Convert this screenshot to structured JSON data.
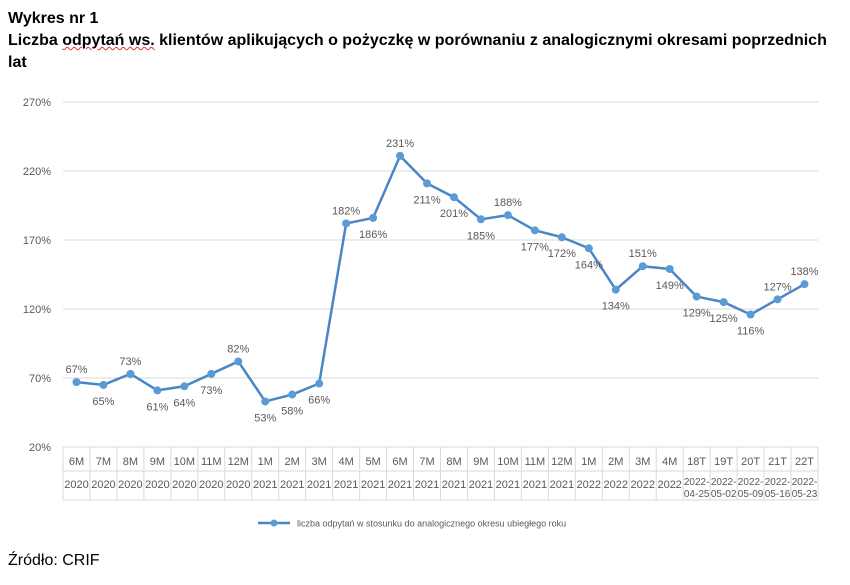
{
  "figure_label": "Wykres nr 1",
  "title_parts": [
    "Liczba ",
    "odpytań ws.",
    " klientów aplikujących o pożyczkę w porównaniu z analogicznymi okresami poprzednich lat"
  ],
  "source": "Źródło: CRIF",
  "colors": {
    "series": "#4a86c5",
    "point": "#5b9bd5",
    "grid": "#d9d9d9",
    "text": "#595959"
  },
  "chart_data": {
    "type": "line",
    "x": [
      [
        "6M",
        "2020"
      ],
      [
        "7M",
        "2020"
      ],
      [
        "8M",
        "2020"
      ],
      [
        "9M",
        "2020"
      ],
      [
        "10M",
        "2020"
      ],
      [
        "11M",
        "2020"
      ],
      [
        "12M",
        "2020"
      ],
      [
        "1M",
        "2021"
      ],
      [
        "2M",
        "2021"
      ],
      [
        "3M",
        "2021"
      ],
      [
        "4M",
        "2021"
      ],
      [
        "5M",
        "2021"
      ],
      [
        "6M",
        "2021"
      ],
      [
        "7M",
        "2021"
      ],
      [
        "8M",
        "2021"
      ],
      [
        "9M",
        "2021"
      ],
      [
        "10M",
        "2021"
      ],
      [
        "11M",
        "2021"
      ],
      [
        "12M",
        "2021"
      ],
      [
        "1M",
        "2022"
      ],
      [
        "2M",
        "2022"
      ],
      [
        "3M",
        "2022"
      ],
      [
        "4M",
        "2022"
      ],
      [
        "18T",
        "2022-04-25"
      ],
      [
        "19T",
        "2022-05-02"
      ],
      [
        "20T",
        "2022-05-09"
      ],
      [
        "21T",
        "2022-05-16"
      ],
      [
        "22T",
        "2022-05-23"
      ]
    ],
    "series": [
      {
        "name": "liczba odpytań w stosunku do analogicznego okresu ubiegłego roku",
        "values": [
          0.67,
          0.65,
          0.73,
          0.61,
          0.64,
          0.73,
          0.82,
          0.53,
          0.58,
          0.66,
          1.82,
          1.86,
          2.31,
          2.11,
          2.01,
          1.85,
          1.88,
          1.77,
          1.72,
          1.64,
          1.34,
          1.51,
          1.49,
          1.29,
          1.25,
          1.16,
          1.27,
          1.38
        ],
        "labels": [
          "67%",
          "65%",
          "73%",
          "61%",
          "64%",
          "73%",
          "82%",
          "53%",
          "58%",
          "66%",
          "182%",
          "186%",
          "231%",
          "211%",
          "201%",
          "185%",
          "188%",
          "177%",
          "172%",
          "164%",
          "134%",
          "151%",
          "149%",
          "129%",
          "125%",
          "116%",
          "127%",
          "138%"
        ]
      }
    ],
    "yticks": [
      "20%",
      "70%",
      "120%",
      "170%",
      "220%",
      "270%"
    ],
    "ytick_values": [
      0.2,
      0.7,
      1.2,
      1.7,
      2.2,
      2.7
    ],
    "ylim": [
      0.2,
      2.7
    ],
    "grid": true,
    "legend_position": "bottom"
  }
}
